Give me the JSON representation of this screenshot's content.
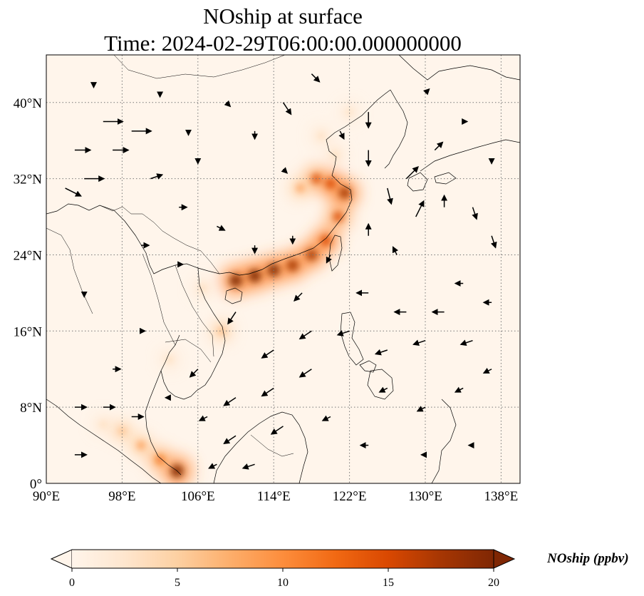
{
  "title_line1": "NOship at surface",
  "title_line2": "Time: 2024-02-29T06:00:00.000000000",
  "map": {
    "lon_range": [
      90,
      140
    ],
    "lat_range": [
      0,
      45
    ],
    "lon_ticks": [
      90,
      98,
      106,
      114,
      122,
      130,
      138
    ],
    "lat_ticks": [
      0,
      8,
      16,
      24,
      32,
      40
    ],
    "lon_tick_labels": [
      "90°E",
      "98°E",
      "106°E",
      "114°E",
      "122°E",
      "130°E",
      "138°E"
    ],
    "lat_tick_labels": [
      "0°",
      "8°N",
      "16°N",
      "24°N",
      "32°N",
      "40°N"
    ],
    "gridlines": true,
    "background_color": "#fff5eb"
  },
  "colorbar": {
    "label": "NOship (ppbv)",
    "min": 0,
    "max": 20,
    "ticks": [
      0,
      5,
      10,
      15,
      20
    ],
    "tick_labels": [
      "0",
      "5",
      "10",
      "15",
      "20"
    ],
    "extend": "both",
    "colors": [
      "#fff5eb",
      "#fee6ce",
      "#fdd0a2",
      "#fdae6b",
      "#fd8d3c",
      "#f16913",
      "#d94801",
      "#a63603",
      "#7f2704"
    ]
  },
  "chart_data": {
    "type": "heatmap",
    "variable": "NOship",
    "units": "ppbv",
    "level": "surface",
    "time": "2024-02-29T06:00:00.000000000",
    "plumes": [
      {
        "lon": 110.0,
        "lat": 21.3,
        "value": 20
      },
      {
        "lon": 112.0,
        "lat": 21.8,
        "value": 20
      },
      {
        "lon": 114.0,
        "lat": 22.4,
        "value": 19
      },
      {
        "lon": 116.0,
        "lat": 22.9,
        "value": 18
      },
      {
        "lon": 118.0,
        "lat": 24.0,
        "value": 17
      },
      {
        "lon": 119.5,
        "lat": 25.5,
        "value": 16
      },
      {
        "lon": 120.8,
        "lat": 28.0,
        "value": 15
      },
      {
        "lon": 121.5,
        "lat": 30.5,
        "value": 18
      },
      {
        "lon": 120.0,
        "lat": 31.5,
        "value": 16
      },
      {
        "lon": 118.5,
        "lat": 32.0,
        "value": 14
      },
      {
        "lon": 116.8,
        "lat": 31.0,
        "value": 9
      },
      {
        "lon": 120.5,
        "lat": 34.5,
        "value": 6
      },
      {
        "lon": 119.0,
        "lat": 36.5,
        "value": 5
      },
      {
        "lon": 122.0,
        "lat": 39.0,
        "value": 4
      },
      {
        "lon": 103.8,
        "lat": 1.3,
        "value": 20
      },
      {
        "lon": 102.0,
        "lat": 2.5,
        "value": 12
      },
      {
        "lon": 100.0,
        "lat": 4.0,
        "value": 10
      },
      {
        "lon": 98.0,
        "lat": 5.5,
        "value": 7
      },
      {
        "lon": 108.5,
        "lat": 16.0,
        "value": 8
      },
      {
        "lon": 106.5,
        "lat": 20.5,
        "value": 6
      },
      {
        "lon": 103.0,
        "lat": 13.0,
        "value": 5
      },
      {
        "lon": 96.0,
        "lat": 6.2,
        "value": 5
      }
    ],
    "wind_vectors": [
      {
        "lon": 92,
        "lat": 31,
        "u": 4,
        "v": -2
      },
      {
        "lon": 93,
        "lat": 35,
        "u": 4,
        "v": 0
      },
      {
        "lon": 96,
        "lat": 38,
        "u": 5,
        "v": 0
      },
      {
        "lon": 99,
        "lat": 37,
        "u": 5,
        "v": 0
      },
      {
        "lon": 94,
        "lat": 32,
        "u": 5,
        "v": 0
      },
      {
        "lon": 97,
        "lat": 35,
        "u": 4,
        "v": 0
      },
      {
        "lon": 101,
        "lat": 32,
        "u": 3,
        "v": 1
      },
      {
        "lon": 104,
        "lat": 29,
        "u": 2,
        "v": 0
      },
      {
        "lon": 108,
        "lat": 27,
        "u": 2,
        "v": -1
      },
      {
        "lon": 112,
        "lat": 37,
        "u": 0,
        "v": -2
      },
      {
        "lon": 115,
        "lat": 40,
        "u": 2,
        "v": -3
      },
      {
        "lon": 118,
        "lat": 43,
        "u": 2,
        "v": -2
      },
      {
        "lon": 124,
        "lat": 39,
        "u": 0,
        "v": -4
      },
      {
        "lon": 124,
        "lat": 35,
        "u": 0,
        "v": -4
      },
      {
        "lon": 126,
        "lat": 31,
        "u": 1,
        "v": -4
      },
      {
        "lon": 129,
        "lat": 28,
        "u": 2,
        "v": 4
      },
      {
        "lon": 132,
        "lat": 29,
        "u": 0,
        "v": 3
      },
      {
        "lon": 135,
        "lat": 29,
        "u": 1,
        "v": -3
      },
      {
        "lon": 137,
        "lat": 26,
        "u": 1,
        "v": -3
      },
      {
        "lon": 128,
        "lat": 32,
        "u": 3,
        "v": 3
      },
      {
        "lon": 131,
        "lat": 35,
        "u": 2,
        "v": 2
      },
      {
        "lon": 124,
        "lat": 20,
        "u": -3,
        "v": 0
      },
      {
        "lon": 128,
        "lat": 18,
        "u": -3,
        "v": 0
      },
      {
        "lon": 132,
        "lat": 18,
        "u": -3,
        "v": 0
      },
      {
        "lon": 135,
        "lat": 15,
        "u": -3,
        "v": -1
      },
      {
        "lon": 130,
        "lat": 15,
        "u": -3,
        "v": -1
      },
      {
        "lon": 126,
        "lat": 14,
        "u": -3,
        "v": -1
      },
      {
        "lon": 122,
        "lat": 16,
        "u": -3,
        "v": -1
      },
      {
        "lon": 118,
        "lat": 16,
        "u": -3,
        "v": -2
      },
      {
        "lon": 114,
        "lat": 14,
        "u": -3,
        "v": -2
      },
      {
        "lon": 118,
        "lat": 12,
        "u": -3,
        "v": -2
      },
      {
        "lon": 114,
        "lat": 10,
        "u": -3,
        "v": -2
      },
      {
        "lon": 110,
        "lat": 9,
        "u": -3,
        "v": -2
      },
      {
        "lon": 115,
        "lat": 6,
        "u": -3,
        "v": -2
      },
      {
        "lon": 110,
        "lat": 5,
        "u": -3,
        "v": -2
      },
      {
        "lon": 112,
        "lat": 2,
        "u": -3,
        "v": -1
      },
      {
        "lon": 108,
        "lat": 2,
        "u": -2,
        "v": -1
      },
      {
        "lon": 106,
        "lat": 12,
        "u": -2,
        "v": -2
      },
      {
        "lon": 110,
        "lat": 18,
        "u": -2,
        "v": -3
      },
      {
        "lon": 112,
        "lat": 25,
        "u": 0,
        "v": -2
      },
      {
        "lon": 116,
        "lat": 26,
        "u": 0,
        "v": -2
      },
      {
        "lon": 120,
        "lat": 24,
        "u": -1,
        "v": -2
      },
      {
        "lon": 93,
        "lat": 8,
        "u": 3,
        "v": 0
      },
      {
        "lon": 96,
        "lat": 8,
        "u": 3,
        "v": 0
      },
      {
        "lon": 99,
        "lat": 7,
        "u": 3,
        "v": 0
      },
      {
        "lon": 93,
        "lat": 3,
        "u": 3,
        "v": 0
      },
      {
        "lon": 97,
        "lat": 12,
        "u": 2,
        "v": 0
      },
      {
        "lon": 100,
        "lat": 16,
        "u": 1,
        "v": 0
      },
      {
        "lon": 94,
        "lat": 20,
        "u": 0,
        "v": -1
      },
      {
        "lon": 104,
        "lat": 23,
        "u": 1,
        "v": 0
      },
      {
        "lon": 100,
        "lat": 25,
        "u": 2,
        "v": 0
      },
      {
        "lon": 127,
        "lat": 24,
        "u": -1,
        "v": 2
      },
      {
        "lon": 124,
        "lat": 26,
        "u": 0,
        "v": 3
      },
      {
        "lon": 134,
        "lat": 21,
        "u": -2,
        "v": 0
      },
      {
        "lon": 137,
        "lat": 19,
        "u": -2,
        "v": 0
      },
      {
        "lon": 130,
        "lat": 8,
        "u": -2,
        "v": -1
      },
      {
        "lon": 134,
        "lat": 10,
        "u": -2,
        "v": -1
      },
      {
        "lon": 126,
        "lat": 10,
        "u": -2,
        "v": -1
      },
      {
        "lon": 137,
        "lat": 12,
        "u": -2,
        "v": -1
      },
      {
        "lon": 120,
        "lat": 7,
        "u": -2,
        "v": -1
      },
      {
        "lon": 124,
        "lat": 4,
        "u": -2,
        "v": 0
      },
      {
        "lon": 130,
        "lat": 3,
        "u": -1,
        "v": 0
      },
      {
        "lon": 135,
        "lat": 4,
        "u": -1,
        "v": 0
      },
      {
        "lon": 105,
        "lat": 37,
        "u": 0,
        "v": -1
      },
      {
        "lon": 109,
        "lat": 40,
        "u": 1,
        "v": -1
      },
      {
        "lon": 102,
        "lat": 41,
        "u": 0,
        "v": -1
      },
      {
        "lon": 95,
        "lat": 42,
        "u": 0,
        "v": -1
      },
      {
        "lon": 106,
        "lat": 34,
        "u": 0,
        "v": -1
      },
      {
        "lon": 115,
        "lat": 33,
        "u": 1,
        "v": -1
      },
      {
        "lon": 121,
        "lat": 37,
        "u": 1,
        "v": -2
      },
      {
        "lon": 130,
        "lat": 41,
        "u": 1,
        "v": 1
      },
      {
        "lon": 134,
        "lat": 38,
        "u": 1,
        "v": 0
      },
      {
        "lon": 137,
        "lat": 34,
        "u": 0,
        "v": -1
      },
      {
        "lon": 117,
        "lat": 20,
        "u": -2,
        "v": -2
      },
      {
        "lon": 107,
        "lat": 7,
        "u": -2,
        "v": -1
      },
      {
        "lon": 103,
        "lat": 9,
        "u": -1,
        "v": 0
      }
    ]
  }
}
